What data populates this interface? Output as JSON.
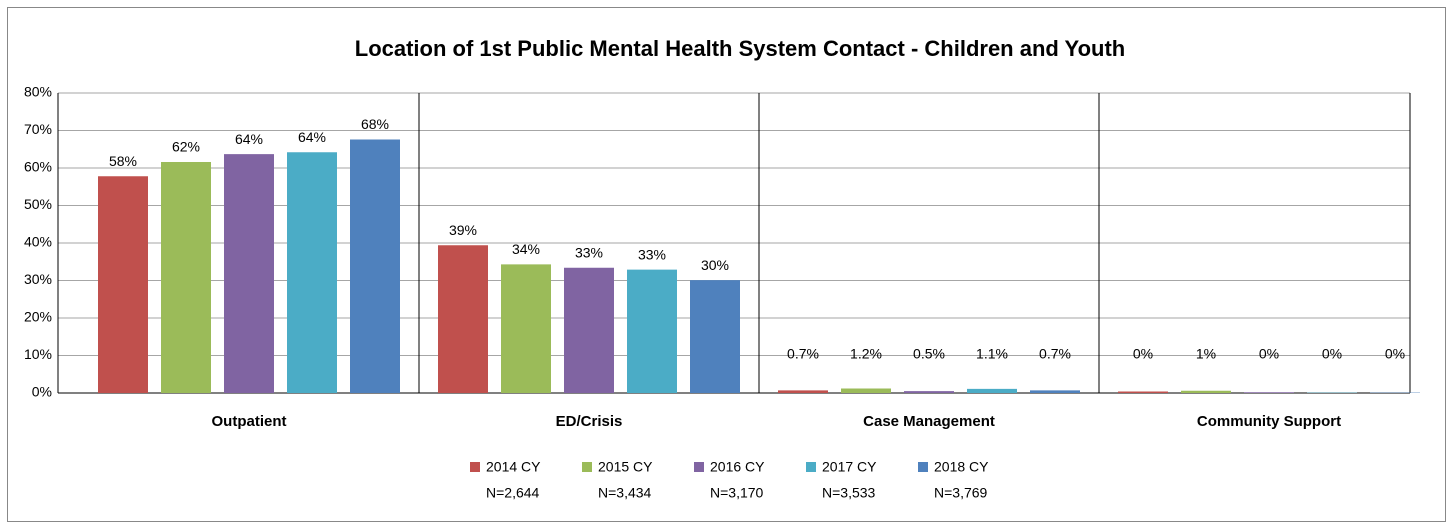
{
  "chart_data": {
    "type": "bar",
    "title": "Location of 1st Public Mental Health System Contact - Children and Youth",
    "categories": [
      "Outpatient",
      "ED/Crisis",
      "Case Management",
      "Community Support"
    ],
    "series": [
      {
        "name": "2014 CY",
        "n_label": "N=2,644",
        "color": "#c0504d",
        "values": [
          57.8,
          39.4,
          0.7,
          0.4
        ],
        "value_labels": [
          "58%",
          "39%",
          "0.7%",
          "0%"
        ]
      },
      {
        "name": "2015 CY",
        "n_label": "N=3,434",
        "color": "#9bbb59",
        "values": [
          61.6,
          34.3,
          1.2,
          0.6
        ],
        "value_labels": [
          "62%",
          "34%",
          "1.2%",
          "1%"
        ]
      },
      {
        "name": "2016 CY",
        "n_label": "N=3,170",
        "color": "#8064a2",
        "values": [
          63.7,
          33.4,
          0.5,
          0.2
        ],
        "value_labels": [
          "64%",
          "33%",
          "0.5%",
          "0%"
        ]
      },
      {
        "name": "2017 CY",
        "n_label": "N=3,533",
        "color": "#4bacc6",
        "values": [
          64.2,
          32.9,
          1.1,
          0.1
        ],
        "value_labels": [
          "64%",
          "33%",
          "1.1%",
          "0%"
        ]
      },
      {
        "name": "2018 CY",
        "n_label": "N=3,769",
        "color": "#4f81bd",
        "values": [
          67.6,
          30.1,
          0.7,
          0.1
        ],
        "value_labels": [
          "68%",
          "30%",
          "0.7%",
          "0%"
        ]
      }
    ],
    "ylim": [
      0,
      80
    ],
    "yticks": [
      {
        "value": 0,
        "label": "0%"
      },
      {
        "value": 10,
        "label": "10%"
      },
      {
        "value": 20,
        "label": "20%"
      },
      {
        "value": 30,
        "label": "30%"
      },
      {
        "value": 40,
        "label": "40%"
      },
      {
        "value": 50,
        "label": "50%"
      },
      {
        "value": 60,
        "label": "60%"
      },
      {
        "value": 70,
        "label": "70%"
      },
      {
        "value": 80,
        "label": "80%"
      }
    ],
    "grid": true
  }
}
